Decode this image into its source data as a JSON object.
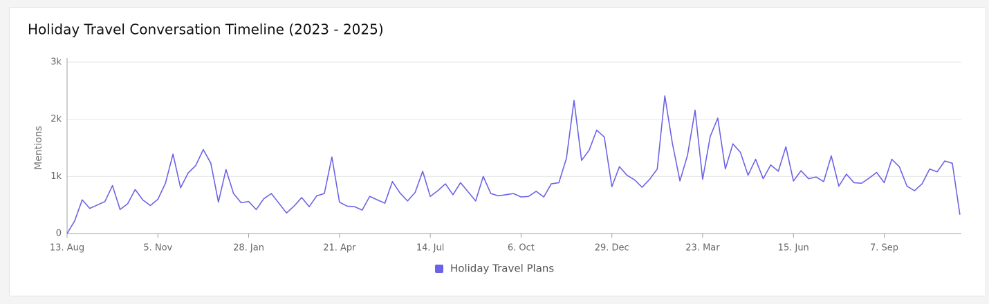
{
  "chart_data": {
    "type": "line",
    "title": "Holiday Travel Conversation Timeline (2023 - 2025)",
    "y_label": "Mentions",
    "categories": [
      "13. Aug",
      null,
      null,
      null,
      null,
      null,
      null,
      null,
      null,
      null,
      null,
      null,
      "5. Nov",
      null,
      null,
      null,
      null,
      null,
      null,
      null,
      null,
      null,
      null,
      null,
      "28. Jan",
      null,
      null,
      null,
      null,
      null,
      null,
      null,
      null,
      null,
      null,
      null,
      "21. Apr",
      null,
      null,
      null,
      null,
      null,
      null,
      null,
      null,
      null,
      null,
      null,
      "14. Jul",
      null,
      null,
      null,
      null,
      null,
      null,
      null,
      null,
      null,
      null,
      null,
      "6. Oct",
      null,
      null,
      null,
      null,
      null,
      null,
      null,
      null,
      null,
      null,
      null,
      "29. Dec",
      null,
      null,
      null,
      null,
      null,
      null,
      null,
      null,
      null,
      null,
      null,
      "23. Mar",
      null,
      null,
      null,
      null,
      null,
      null,
      null,
      null,
      null,
      null,
      null,
      "15. Jun",
      null,
      null,
      null,
      null,
      null,
      null,
      null,
      null,
      null,
      null,
      null,
      "7. Sep",
      null,
      null,
      null,
      null,
      null,
      null,
      null,
      null,
      null,
      null
    ],
    "series": [
      {
        "name": "Holiday Travel Plans",
        "color": "#6b63e6",
        "values": [
          0,
          220,
          590,
          440,
          500,
          560,
          840,
          420,
          520,
          770,
          590,
          490,
          600,
          880,
          1390,
          800,
          1060,
          1190,
          1470,
          1230,
          550,
          1120,
          700,
          540,
          560,
          420,
          610,
          700,
          530,
          360,
          480,
          630,
          470,
          660,
          700,
          1340,
          550,
          480,
          470,
          410,
          650,
          590,
          530,
          910,
          710,
          570,
          720,
          1090,
          650,
          750,
          870,
          680,
          890,
          730,
          570,
          1000,
          700,
          660,
          680,
          700,
          640,
          650,
          740,
          640,
          870,
          890,
          1320,
          2330,
          1280,
          1460,
          1810,
          1690,
          820,
          1170,
          1020,
          940,
          810,
          950,
          1130,
          2410,
          1580,
          920,
          1370,
          2160,
          950,
          1700,
          2020,
          1130,
          1570,
          1420,
          1020,
          1300,
          960,
          1200,
          1090,
          1520,
          920,
          1100,
          960,
          990,
          910,
          1360,
          830,
          1040,
          890,
          880,
          970,
          1070,
          890,
          1300,
          1170,
          830,
          750,
          870,
          1130,
          1080,
          1270,
          1230,
          330
        ]
      }
    ],
    "ylim": [
      0,
      3000
    ],
    "yticks": [
      0,
      {
        "value": 1000,
        "label": "1k"
      },
      {
        "value": 2000,
        "label": "2k"
      },
      {
        "value": 3000,
        "label": "3k"
      }
    ],
    "grid": true,
    "legend": "bottom"
  }
}
